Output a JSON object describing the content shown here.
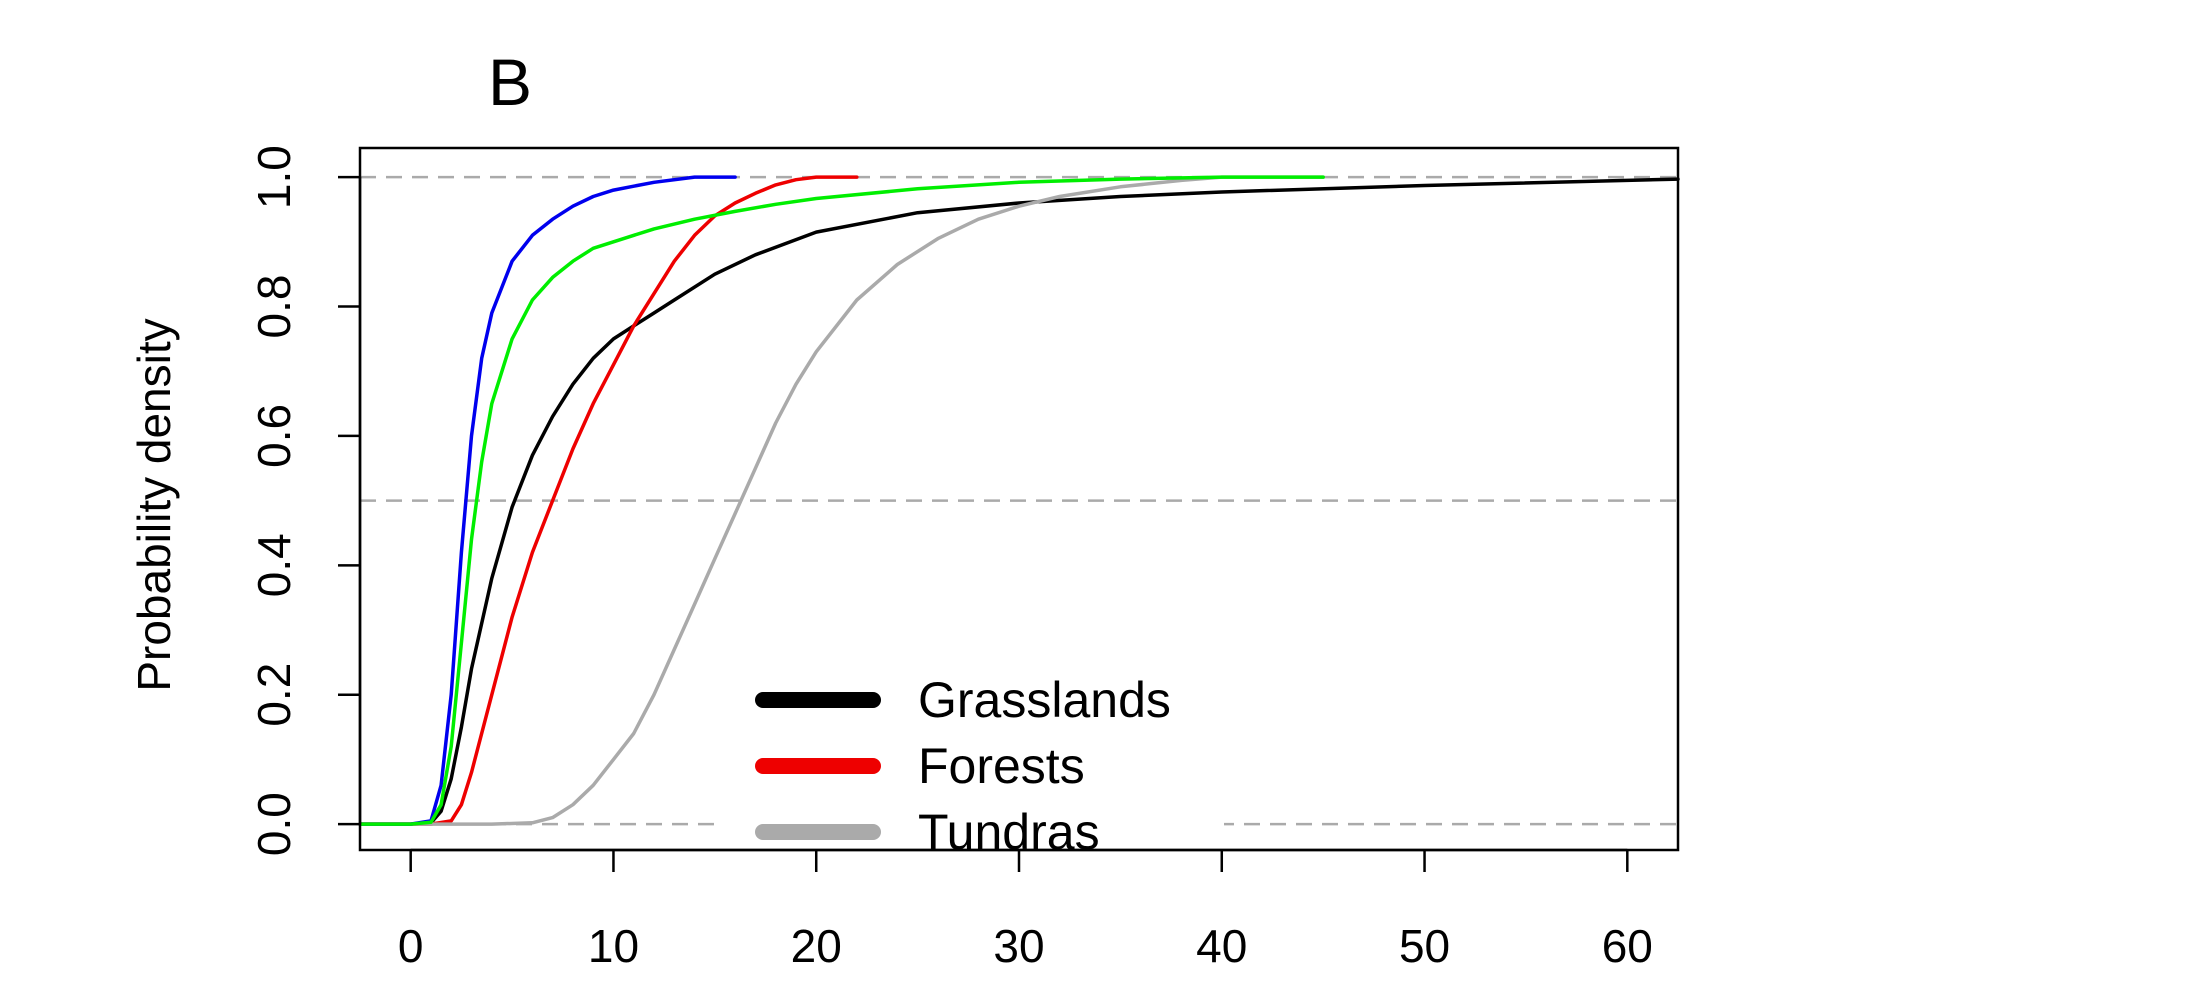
{
  "chart_data": {
    "type": "line",
    "panel_label": "B",
    "xlabel": "",
    "ylabel": "Probability density",
    "xlim": [
      -2.5,
      62.5
    ],
    "ylim": [
      -0.04,
      1.045
    ],
    "x_ticks": [
      0,
      10,
      20,
      30,
      40,
      50,
      60
    ],
    "y_ticks": [
      "0.0",
      "0.2",
      "0.4",
      "0.6",
      "0.8",
      "1.0"
    ],
    "grid": false,
    "reference_lines": [
      {
        "y": 0,
        "color": "#aaaaaa",
        "style": "dashed"
      },
      {
        "y": 0.5,
        "color": "#aaaaaa",
        "style": "dashed"
      },
      {
        "y": 1,
        "color": "#aaaaaa",
        "style": "dashed"
      }
    ],
    "legend": {
      "placement": "bottom-center",
      "entries": [
        {
          "label": "Grasslands",
          "color": "#000000"
        },
        {
          "label": "Forests",
          "color": "#ee0000"
        },
        {
          "label": "Tundras",
          "color": "#aaaaaa"
        }
      ]
    },
    "series": [
      {
        "color": "#000000",
        "x": [
          -2.5,
          0,
          1,
          1.5,
          2,
          2.5,
          3,
          4,
          5,
          6,
          7,
          8,
          9,
          10,
          11,
          12,
          13,
          15,
          17,
          20,
          25,
          30,
          35,
          40,
          50,
          62.5
        ],
        "y": [
          0,
          0,
          0.002,
          0.02,
          0.07,
          0.15,
          0.24,
          0.38,
          0.49,
          0.57,
          0.63,
          0.68,
          0.72,
          0.75,
          0.77,
          0.79,
          0.81,
          0.85,
          0.88,
          0.915,
          0.945,
          0.96,
          0.97,
          0.977,
          0.987,
          0.997
        ]
      },
      {
        "color": "#ee0000",
        "x": [
          -2.5,
          0,
          1,
          2,
          2.5,
          3,
          4,
          5,
          6,
          7,
          8,
          9,
          10,
          11,
          12,
          13,
          14,
          15,
          16,
          17,
          18,
          19,
          20,
          22
        ],
        "y": [
          0,
          0,
          0,
          0.005,
          0.03,
          0.08,
          0.2,
          0.32,
          0.42,
          0.5,
          0.58,
          0.65,
          0.71,
          0.77,
          0.82,
          0.87,
          0.91,
          0.94,
          0.96,
          0.975,
          0.988,
          0.996,
          1.0,
          1.0
        ]
      },
      {
        "color": "#aaaaaa",
        "x": [
          -2.5,
          0,
          4,
          6,
          7,
          8,
          9,
          10,
          11,
          12,
          13,
          14,
          15,
          16,
          17,
          18,
          19,
          20,
          22,
          24,
          26,
          28,
          30,
          32,
          35,
          38,
          40,
          45
        ],
        "y": [
          0,
          0,
          0,
          0.002,
          0.01,
          0.03,
          0.06,
          0.1,
          0.14,
          0.2,
          0.27,
          0.34,
          0.41,
          0.48,
          0.55,
          0.62,
          0.68,
          0.73,
          0.81,
          0.865,
          0.905,
          0.935,
          0.955,
          0.97,
          0.985,
          0.995,
          1.0,
          1.0
        ]
      },
      {
        "color": "#0000ee",
        "x": [
          -2.5,
          0,
          1,
          1.5,
          2,
          2.5,
          3,
          3.5,
          4,
          5,
          6,
          7,
          8,
          9,
          10,
          12,
          14,
          16
        ],
        "y": [
          0,
          0,
          0.005,
          0.06,
          0.2,
          0.42,
          0.6,
          0.72,
          0.79,
          0.87,
          0.91,
          0.935,
          0.955,
          0.97,
          0.98,
          0.992,
          1.0,
          1.0
        ]
      },
      {
        "color": "#00ee00",
        "x": [
          -2.5,
          0,
          1,
          1.5,
          2,
          2.5,
          3,
          3.5,
          4,
          5,
          6,
          7,
          8,
          9,
          10,
          12,
          14,
          16,
          18,
          20,
          25,
          30,
          35,
          40,
          45
        ],
        "y": [
          0,
          0,
          0.003,
          0.03,
          0.12,
          0.28,
          0.44,
          0.56,
          0.65,
          0.75,
          0.81,
          0.845,
          0.87,
          0.89,
          0.9,
          0.92,
          0.935,
          0.947,
          0.958,
          0.967,
          0.982,
          0.992,
          0.997,
          1.0,
          1.0
        ]
      }
    ]
  }
}
